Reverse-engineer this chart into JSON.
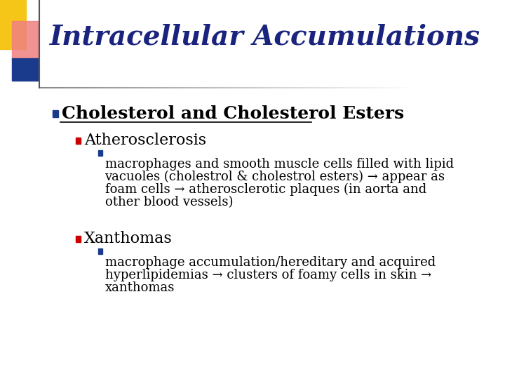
{
  "title": "Intracellular Accumulations",
  "title_color": "#1a237e",
  "title_fontsize": 28,
  "bg_color": "#ffffff",
  "bullet1_text": "Cholesterol and Cholesterol Esters",
  "bullet1_color": "#000000",
  "bullet1_square_color": "#1a3a8c",
  "bullet1_fontsize": 18,
  "bullet2a_text": "Atherosclerosis",
  "bullet2a_color": "#000000",
  "bullet2a_square_color": "#cc0000",
  "bullet2a_fontsize": 16,
  "bullet3a_lines": [
    "macrophages and smooth muscle cells filled with lipid",
    "vacuoles (cholestrol & cholestrol esters) → appear as",
    "foam cells → atherosclerotic plaques (in aorta and",
    "other blood vessels)"
  ],
  "bullet3a_square_color": "#1a3a8c",
  "bullet3a_fontsize": 13,
  "bullet2b_text": "Xanthomas",
  "bullet2b_color": "#000000",
  "bullet2b_square_color": "#cc0000",
  "bullet2b_fontsize": 16,
  "bullet3b_lines": [
    "macrophage accumulation/hereditary and acquired",
    "hyperlipidemias → clusters of foamy cells in skin →",
    "xanthomas"
  ],
  "bullet3b_square_color": "#1a3a8c",
  "bullet3b_fontsize": 13,
  "decoration_yellow": "#f5c518",
  "decoration_pink": "#f08080",
  "decoration_blue": "#1a3a8c"
}
